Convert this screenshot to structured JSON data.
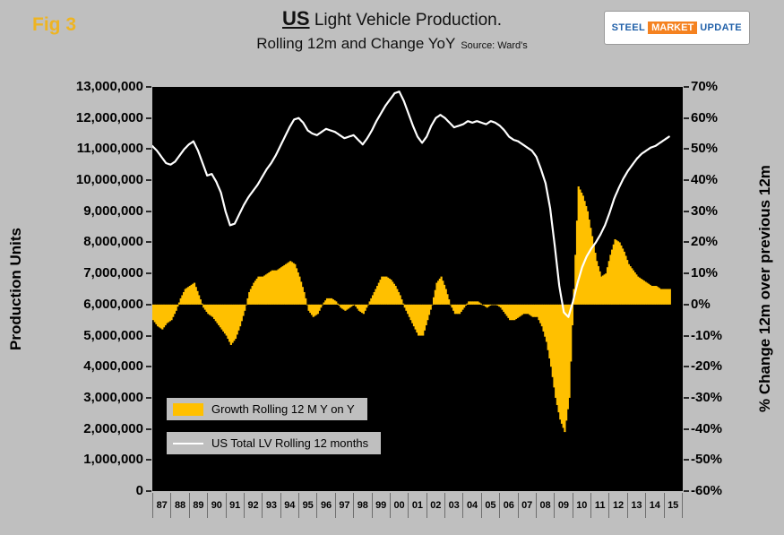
{
  "figure_label": "Fig 3",
  "title": {
    "emph": "US",
    "rest": " Light Vehicle Production.",
    "line2": "Rolling 12m and Change YoY",
    "source": "Source: Ward's"
  },
  "logo": {
    "part1": "STEEL",
    "part2": "MARKET",
    "part3": "UPDATE"
  },
  "y_left_title": "Production Units",
  "y_right_title": "% Change 12m over previous 12m",
  "legend": {
    "bar_label": "Growth Rolling 12 M Y on Y",
    "line_label": "US Total LV Rolling 12 months"
  },
  "colors": {
    "background": "#bfbfbf",
    "plot_background": "#000000",
    "bar": "#ffc000",
    "line": "#ffffff",
    "fig_label": "#eeb422",
    "logo_blue": "#1f5fa8",
    "logo_orange": "#f58220"
  },
  "chart_data": {
    "type": "combo",
    "title": "US Light Vehicle Production. Rolling 12m and Change YoY",
    "source": "Ward's",
    "grid": false,
    "legend_position": "inside lower-left",
    "x_start": 1987.0,
    "x_step": 0.25,
    "x_axis_labels": [
      "87",
      "88",
      "89",
      "90",
      "91",
      "92",
      "93",
      "94",
      "95",
      "96",
      "97",
      "98",
      "99",
      "00",
      "01",
      "02",
      "03",
      "04",
      "05",
      "06",
      "07",
      "08",
      "09",
      "10",
      "11",
      "12",
      "13",
      "14",
      "15"
    ],
    "left_axis": {
      "title": "Production Units",
      "min": 0,
      "max": 13000000,
      "step": 1000000,
      "tick_labels": [
        "13,000,000",
        "12,000,000",
        "11,000,000",
        "10,000,000",
        "9,000,000",
        "8,000,000",
        "7,000,000",
        "6,000,000",
        "5,000,000",
        "4,000,000",
        "3,000,000",
        "2,000,000",
        "1,000,000",
        "0"
      ]
    },
    "right_axis": {
      "title": "% Change 12m over previous 12m",
      "min": -60,
      "max": 70,
      "step": 10,
      "tick_labels": [
        "70%",
        "60%",
        "50%",
        "40%",
        "30%",
        "20%",
        "10%",
        "0%",
        "-10%",
        "-20%",
        "-30%",
        "-40%",
        "-50%",
        "-60%"
      ]
    },
    "series": [
      {
        "name": "Growth Rolling 12 M Y on Y",
        "type": "bar",
        "axis": "right",
        "unit": "percent",
        "values": [
          -5,
          -7,
          -8,
          -6,
          -5,
          -2,
          2,
          5,
          6,
          7,
          3,
          -1,
          -3,
          -4,
          -6,
          -8,
          -10,
          -13,
          -11,
          -7,
          -2,
          4,
          7,
          9,
          9,
          10,
          11,
          11,
          12,
          13,
          14,
          13,
          9,
          4,
          -2,
          -4,
          -3,
          0,
          2,
          2,
          1,
          -1,
          -2,
          -1,
          0,
          -2,
          -3,
          0,
          3,
          6,
          9,
          9,
          8,
          6,
          3,
          -1,
          -4,
          -7,
          -10,
          -10,
          -5,
          0,
          7,
          9,
          5,
          0,
          -3,
          -3,
          -1,
          1,
          1,
          1,
          0,
          -1,
          0,
          0,
          -1,
          -3,
          -5,
          -5,
          -4,
          -3,
          -3,
          -4,
          -4,
          -7,
          -12,
          -20,
          -30,
          -37,
          -41,
          -30,
          5,
          38,
          35,
          30,
          22,
          14,
          9,
          10,
          16,
          21,
          20,
          17,
          13,
          11,
          9,
          8,
          7,
          6,
          6,
          5,
          5,
          5
        ]
      },
      {
        "name": "US Total LV Rolling 12 months",
        "type": "line",
        "axis": "left",
        "unit": "million units",
        "values": [
          11.1,
          10.95,
          10.75,
          10.55,
          10.5,
          10.6,
          10.8,
          11.0,
          11.15,
          11.25,
          10.95,
          10.55,
          10.15,
          10.2,
          9.95,
          9.6,
          9.0,
          8.55,
          8.6,
          8.9,
          9.2,
          9.45,
          9.65,
          9.85,
          10.1,
          10.35,
          10.55,
          10.8,
          11.1,
          11.4,
          11.7,
          11.95,
          12.0,
          11.85,
          11.6,
          11.5,
          11.45,
          11.55,
          11.65,
          11.6,
          11.55,
          11.45,
          11.35,
          11.4,
          11.45,
          11.3,
          11.15,
          11.35,
          11.6,
          11.9,
          12.15,
          12.4,
          12.6,
          12.8,
          12.85,
          12.55,
          12.15,
          11.75,
          11.4,
          11.2,
          11.4,
          11.75,
          12.0,
          12.1,
          12.0,
          11.85,
          11.7,
          11.75,
          11.8,
          11.9,
          11.85,
          11.9,
          11.85,
          11.8,
          11.9,
          11.85,
          11.75,
          11.6,
          11.4,
          11.3,
          11.25,
          11.15,
          11.05,
          10.95,
          10.75,
          10.35,
          9.9,
          9.1,
          7.9,
          6.6,
          5.75,
          5.6,
          6.1,
          6.7,
          7.2,
          7.55,
          7.8,
          8.0,
          8.25,
          8.55,
          8.95,
          9.4,
          9.75,
          10.05,
          10.3,
          10.5,
          10.7,
          10.85,
          10.95,
          11.05,
          11.1,
          11.2,
          11.3,
          11.4
        ]
      }
    ],
    "alignment_note": "0% on right axis aligns with 6,000,000 units on left axis"
  }
}
